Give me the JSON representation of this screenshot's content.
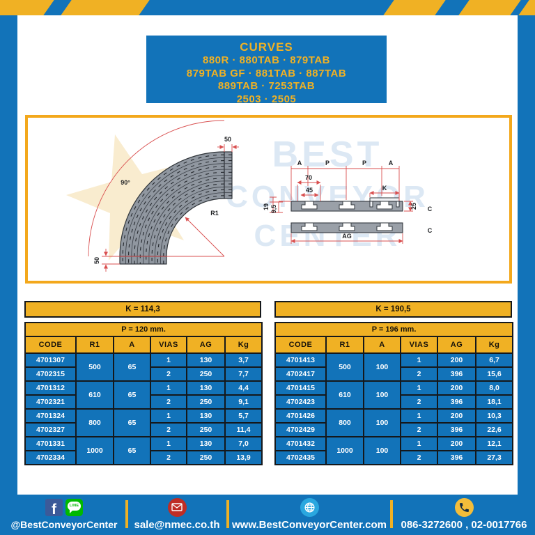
{
  "title_box": {
    "title": "CURVES",
    "lines": [
      "880R · 880TAB · 879TAB",
      "879TAB GF · 881TAB · 887TAB",
      "889TAB · 7253TAB",
      "2503 · 2505"
    ]
  },
  "diagram": {
    "curve": {
      "angle": "90°",
      "radius_label": "R1",
      "top_overhang": "50",
      "bottom_overhang": "50"
    },
    "section": {
      "span_labels": [
        "A",
        "P",
        "P",
        "A"
      ],
      "dim_70": "70",
      "dim_45": "45",
      "dim_k": "K",
      "dim_25": "25",
      "dim_19": "19",
      "dim_9_5": "9,5",
      "dim_ag": "AG",
      "c_top": "C",
      "c_bottom": "C"
    },
    "watermark": {
      "line1": "BEST",
      "line2": "CONVEYOR",
      "line3": "CENTER"
    }
  },
  "tables": [
    {
      "k_label": "K = 114,3",
      "p_label": "P = 120 mm.",
      "columns": [
        "CODE",
        "R1",
        "A",
        "VIAS",
        "AG",
        "Kg"
      ],
      "groups": [
        {
          "r1": "500",
          "a": "65",
          "rows": [
            {
              "code": "4701307",
              "vias": "1",
              "ag": "130",
              "kg": "3,7"
            },
            {
              "code": "4702315",
              "vias": "2",
              "ag": "250",
              "kg": "7,7"
            }
          ]
        },
        {
          "r1": "610",
          "a": "65",
          "rows": [
            {
              "code": "4701312",
              "vias": "1",
              "ag": "130",
              "kg": "4,4"
            },
            {
              "code": "4702321",
              "vias": "2",
              "ag": "250",
              "kg": "9,1"
            }
          ]
        },
        {
          "r1": "800",
          "a": "65",
          "rows": [
            {
              "code": "4701324",
              "vias": "1",
              "ag": "130",
              "kg": "5,7"
            },
            {
              "code": "4702327",
              "vias": "2",
              "ag": "250",
              "kg": "11,4"
            }
          ]
        },
        {
          "r1": "1000",
          "a": "65",
          "rows": [
            {
              "code": "4701331",
              "vias": "1",
              "ag": "130",
              "kg": "7,0"
            },
            {
              "code": "4702334",
              "vias": "2",
              "ag": "250",
              "kg": "13,9"
            }
          ]
        }
      ]
    },
    {
      "k_label": "K = 190,5",
      "p_label": "P = 196 mm.",
      "columns": [
        "CODE",
        "R1",
        "A",
        "VIAS",
        "AG",
        "Kg"
      ],
      "groups": [
        {
          "r1": "500",
          "a": "100",
          "rows": [
            {
              "code": "4701413",
              "vias": "1",
              "ag": "200",
              "kg": "6,7"
            },
            {
              "code": "4702417",
              "vias": "2",
              "ag": "396",
              "kg": "15,6"
            }
          ]
        },
        {
          "r1": "610",
          "a": "100",
          "rows": [
            {
              "code": "4701415",
              "vias": "1",
              "ag": "200",
              "kg": "8,0"
            },
            {
              "code": "4702423",
              "vias": "2",
              "ag": "396",
              "kg": "18,1"
            }
          ]
        },
        {
          "r1": "800",
          "a": "100",
          "rows": [
            {
              "code": "4701426",
              "vias": "1",
              "ag": "200",
              "kg": "10,3"
            },
            {
              "code": "4702429",
              "vias": "2",
              "ag": "396",
              "kg": "22,6"
            }
          ]
        },
        {
          "r1": "1000",
          "a": "100",
          "rows": [
            {
              "code": "4701432",
              "vias": "1",
              "ag": "200",
              "kg": "12,1"
            },
            {
              "code": "4702435",
              "vias": "2",
              "ag": "396",
              "kg": "27,3"
            }
          ]
        }
      ]
    }
  ],
  "footer": {
    "facebook_letter": "f",
    "line_label": "LINE",
    "social_handle": "@BestConveyorCenter",
    "email": "sale@nmec.co.th",
    "website": "www.BestConveyorCenter.com",
    "phones": "086-3272600 , 02-0017766"
  },
  "colors": {
    "blue": "#1273b9",
    "yellow": "#f0b124",
    "dim_red": "#d94f4f",
    "facebook_blue": "#3c5a99",
    "line_green": "#00b900",
    "email_red": "#bf2d25",
    "globe_blue": "#2aa7df",
    "phone_yellow": "#f3bd3a"
  }
}
